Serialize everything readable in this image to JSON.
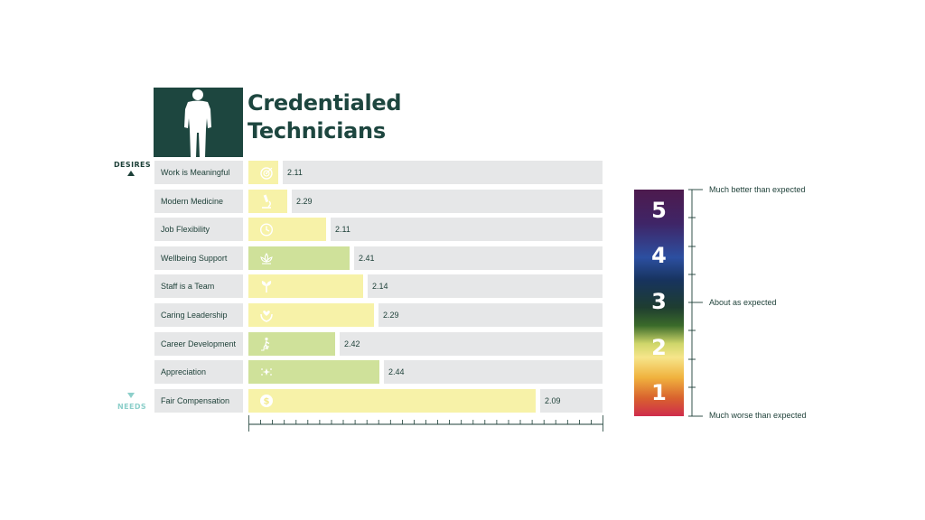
{
  "header": {
    "title_line1": "Credentialed",
    "title_line2": "Technicians",
    "figure_icon": "person-silhouette-icon"
  },
  "axis": {
    "top_label": "DESIRES",
    "bottom_label": "NEEDS"
  },
  "colors": {
    "yellow": "#f7f2a8",
    "green": "#cfe19a",
    "track": "#e6e7e8",
    "header_bg": "#1d463f"
  },
  "chart_data": {
    "type": "bar",
    "orientation": "horizontal",
    "categories": [
      "Work is Meaningful",
      "Modern Medicine",
      "Job Flexibility",
      "Wellbeing Support",
      "Staff is a Team",
      "Caring Leadership",
      "Career Development",
      "Appreciation",
      "Fair Compensation"
    ],
    "value_labels": [
      "2.11",
      "2.29",
      "2.11",
      "2.41",
      "2.14",
      "2.29",
      "2.42",
      "2.44",
      "2.09"
    ],
    "bar_lengths_pct": [
      8.5,
      11,
      22,
      28.5,
      32.5,
      35.5,
      24.5,
      37,
      81
    ],
    "bar_colors": [
      "yellow",
      "yellow",
      "yellow",
      "green",
      "yellow",
      "yellow",
      "green",
      "green",
      "yellow"
    ],
    "icons": [
      "target-icon",
      "microscope-icon",
      "clock-icon",
      "lotus-icon",
      "leaves-icon",
      "hands-heart-icon",
      "stairs-climber-icon",
      "sparkle-icon",
      "dollar-coin-icon"
    ],
    "scale": {
      "numbers": [
        "5",
        "4",
        "3",
        "2",
        "1"
      ],
      "labels": {
        "top": "Much better than expected",
        "middle": "About as expected",
        "bottom": "Much worse than expected"
      }
    }
  }
}
